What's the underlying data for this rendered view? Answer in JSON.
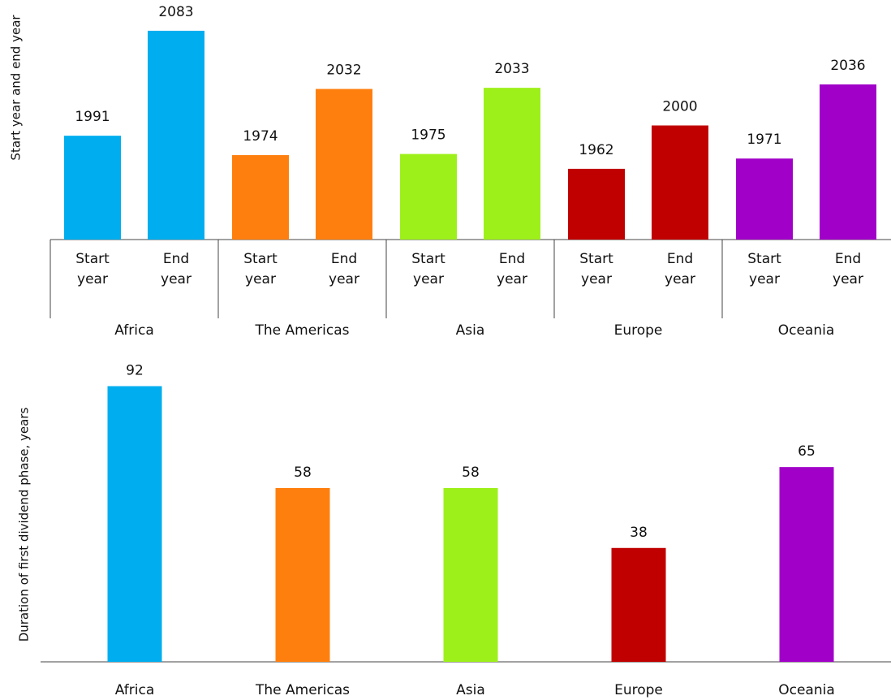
{
  "chart_data": [
    {
      "type": "grouped_bar",
      "y_label": "Start year and end year",
      "categories": [
        "Africa",
        "The Americas",
        "Asia",
        "Europe",
        "Oceania"
      ],
      "colors": [
        "#00aeef",
        "#ff7f0e",
        "#9ef01a",
        "#c00000",
        "#a100c8"
      ],
      "series": [
        {
          "name": "Start year",
          "values": [
            1991,
            1974,
            1975,
            1962,
            1971
          ]
        },
        {
          "name": "End year",
          "values": [
            2083,
            2032,
            2033,
            2000,
            2036
          ]
        }
      ],
      "ylim": [
        1900,
        2100
      ]
    },
    {
      "type": "bar",
      "y_label": "Duration of first dividend phase, years",
      "categories": [
        "Africa",
        "The Americas",
        "Asia",
        "Europe",
        "Oceania"
      ],
      "colors": [
        "#00aeef",
        "#ff7f0e",
        "#9ef01a",
        "#c00000",
        "#a100c8"
      ],
      "values": [
        92,
        58,
        58,
        38,
        65
      ],
      "ylim": [
        0,
        100
      ]
    }
  ]
}
